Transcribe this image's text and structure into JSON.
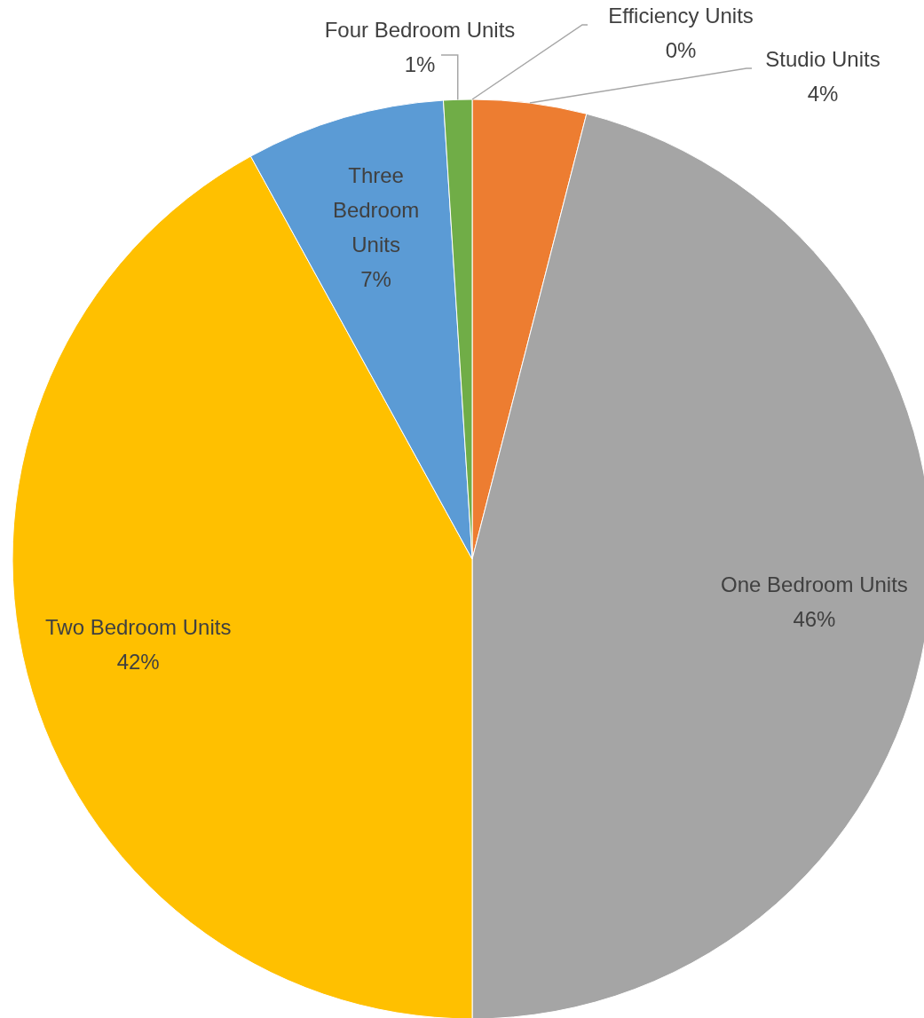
{
  "chart_data": {
    "type": "pie",
    "categories": [
      "Efficiency Units",
      "Studio Units",
      "One Bedroom Units",
      "Two Bedroom Units",
      "Three Bedroom Units",
      "Four Bedroom Units"
    ],
    "values": [
      0,
      4,
      46,
      42,
      7,
      1
    ],
    "value_labels": [
      "0%",
      "4%",
      "46%",
      "42%",
      "7%",
      "1%"
    ],
    "colors": [
      "#4472c4",
      "#ed7d31",
      "#a5a5a5",
      "#ffc000",
      "#5b9bd5",
      "#70ad47"
    ]
  }
}
